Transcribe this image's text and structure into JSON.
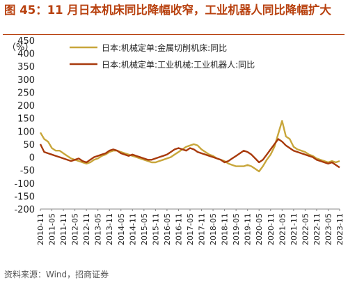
{
  "header": {
    "title": "图 45：11 月日本机床同比降幅收窄，工业机器人同比降幅扩大"
  },
  "footer": {
    "source": "资料来源：Wind，招商证券"
  },
  "chart_data": {
    "type": "line",
    "ylabel": "（%）",
    "ylim": [
      -200,
      450
    ],
    "yticks": [
      450,
      400,
      350,
      300,
      250,
      200,
      150,
      100,
      50,
      0,
      -50,
      -100,
      -150,
      -200
    ],
    "grid": false,
    "legend_position": "top-right",
    "x_tick_labels": [
      "2010-11",
      "2011-05",
      "2011-11",
      "2012-05",
      "2012-11",
      "2013-05",
      "2013-11",
      "2014-05",
      "2014-11",
      "2015-05",
      "2015-11",
      "2016-05",
      "2016-11",
      "2017-05",
      "2017-11",
      "2018-05",
      "2018-11",
      "2019-05",
      "2019-11",
      "2020-05",
      "2020-11",
      "2021-05",
      "2021-11",
      "2022-05",
      "2022-11",
      "2023-05",
      "2023-11"
    ],
    "series": [
      {
        "name": "日本:机械定单:金属切削机床:同比",
        "color": "#c8a63b",
        "points": [
          [
            "2010-11",
            95
          ],
          [
            "2011-01",
            70
          ],
          [
            "2011-03",
            60
          ],
          [
            "2011-05",
            35
          ],
          [
            "2011-07",
            25
          ],
          [
            "2011-09",
            25
          ],
          [
            "2011-11",
            15
          ],
          [
            "2012-01",
            5
          ],
          [
            "2012-03",
            -5
          ],
          [
            "2012-05",
            -10
          ],
          [
            "2012-07",
            -15
          ],
          [
            "2012-09",
            -20
          ],
          [
            "2012-11",
            -25
          ],
          [
            "2013-01",
            -20
          ],
          [
            "2013-03",
            -10
          ],
          [
            "2013-05",
            -5
          ],
          [
            "2013-07",
            5
          ],
          [
            "2013-09",
            10
          ],
          [
            "2013-11",
            20
          ],
          [
            "2014-01",
            25
          ],
          [
            "2014-03",
            25
          ],
          [
            "2014-05",
            20
          ],
          [
            "2014-07",
            15
          ],
          [
            "2014-09",
            10
          ],
          [
            "2014-11",
            5
          ],
          [
            "2015-01",
            0
          ],
          [
            "2015-03",
            -5
          ],
          [
            "2015-05",
            -10
          ],
          [
            "2015-07",
            -15
          ],
          [
            "2015-09",
            -20
          ],
          [
            "2015-11",
            -20
          ],
          [
            "2016-01",
            -15
          ],
          [
            "2016-03",
            -10
          ],
          [
            "2016-05",
            -5
          ],
          [
            "2016-07",
            0
          ],
          [
            "2016-09",
            10
          ],
          [
            "2016-11",
            20
          ],
          [
            "2017-01",
            30
          ],
          [
            "2017-03",
            40
          ],
          [
            "2017-05",
            45
          ],
          [
            "2017-07",
            50
          ],
          [
            "2017-09",
            45
          ],
          [
            "2017-11",
            30
          ],
          [
            "2018-01",
            20
          ],
          [
            "2018-03",
            10
          ],
          [
            "2018-05",
            5
          ],
          [
            "2018-07",
            -5
          ],
          [
            "2018-09",
            -10
          ],
          [
            "2018-11",
            -15
          ],
          [
            "2019-01",
            -25
          ],
          [
            "2019-03",
            -30
          ],
          [
            "2019-05",
            -35
          ],
          [
            "2019-07",
            -35
          ],
          [
            "2019-09",
            -35
          ],
          [
            "2019-11",
            -30
          ],
          [
            "2020-01",
            -35
          ],
          [
            "2020-03",
            -45
          ],
          [
            "2020-05",
            -55
          ],
          [
            "2020-07",
            -35
          ],
          [
            "2020-09",
            -10
          ],
          [
            "2020-11",
            10
          ],
          [
            "2021-01",
            40
          ],
          [
            "2021-03",
            90
          ],
          [
            "2021-05",
            140
          ],
          [
            "2021-07",
            80
          ],
          [
            "2021-09",
            70
          ],
          [
            "2021-11",
            40
          ],
          [
            "2022-01",
            30
          ],
          [
            "2022-03",
            25
          ],
          [
            "2022-05",
            20
          ],
          [
            "2022-07",
            10
          ],
          [
            "2022-09",
            5
          ],
          [
            "2022-11",
            -5
          ],
          [
            "2023-01",
            -10
          ],
          [
            "2023-03",
            -15
          ],
          [
            "2023-05",
            -20
          ],
          [
            "2023-07",
            -15
          ],
          [
            "2023-09",
            -20
          ],
          [
            "2023-11",
            -15
          ]
        ]
      },
      {
        "name": "日本:机械定单:工业机械:工业机器人:同比",
        "color": "#a83a0c",
        "points": [
          [
            "2010-11",
            50
          ],
          [
            "2011-01",
            20
          ],
          [
            "2011-03",
            15
          ],
          [
            "2011-05",
            10
          ],
          [
            "2011-07",
            5
          ],
          [
            "2011-09",
            0
          ],
          [
            "2011-11",
            -5
          ],
          [
            "2012-01",
            -10
          ],
          [
            "2012-03",
            -15
          ],
          [
            "2012-05",
            -10
          ],
          [
            "2012-07",
            -5
          ],
          [
            "2012-09",
            -15
          ],
          [
            "2012-11",
            -20
          ],
          [
            "2013-01",
            -10
          ],
          [
            "2013-03",
            0
          ],
          [
            "2013-05",
            5
          ],
          [
            "2013-07",
            10
          ],
          [
            "2013-09",
            15
          ],
          [
            "2013-11",
            25
          ],
          [
            "2014-01",
            30
          ],
          [
            "2014-03",
            25
          ],
          [
            "2014-05",
            15
          ],
          [
            "2014-07",
            10
          ],
          [
            "2014-09",
            5
          ],
          [
            "2014-11",
            10
          ],
          [
            "2015-01",
            5
          ],
          [
            "2015-03",
            0
          ],
          [
            "2015-05",
            -5
          ],
          [
            "2015-07",
            -10
          ],
          [
            "2015-09",
            -10
          ],
          [
            "2015-11",
            -5
          ],
          [
            "2016-01",
            0
          ],
          [
            "2016-03",
            5
          ],
          [
            "2016-05",
            10
          ],
          [
            "2016-07",
            20
          ],
          [
            "2016-09",
            30
          ],
          [
            "2016-11",
            35
          ],
          [
            "2017-01",
            30
          ],
          [
            "2017-03",
            25
          ],
          [
            "2017-05",
            35
          ],
          [
            "2017-07",
            30
          ],
          [
            "2017-09",
            20
          ],
          [
            "2017-11",
            15
          ],
          [
            "2018-01",
            10
          ],
          [
            "2018-03",
            5
          ],
          [
            "2018-05",
            0
          ],
          [
            "2018-07",
            -5
          ],
          [
            "2018-09",
            -10
          ],
          [
            "2018-11",
            -20
          ],
          [
            "2019-01",
            -15
          ],
          [
            "2019-03",
            -5
          ],
          [
            "2019-05",
            5
          ],
          [
            "2019-07",
            15
          ],
          [
            "2019-09",
            25
          ],
          [
            "2019-11",
            20
          ],
          [
            "2020-01",
            10
          ],
          [
            "2020-03",
            -5
          ],
          [
            "2020-05",
            -20
          ],
          [
            "2020-07",
            -10
          ],
          [
            "2020-09",
            10
          ],
          [
            "2020-11",
            30
          ],
          [
            "2021-01",
            50
          ],
          [
            "2021-03",
            70
          ],
          [
            "2021-05",
            60
          ],
          [
            "2021-07",
            45
          ],
          [
            "2021-09",
            35
          ],
          [
            "2021-11",
            25
          ],
          [
            "2022-01",
            20
          ],
          [
            "2022-03",
            15
          ],
          [
            "2022-05",
            10
          ],
          [
            "2022-07",
            5
          ],
          [
            "2022-09",
            0
          ],
          [
            "2022-11",
            -10
          ],
          [
            "2023-01",
            -15
          ],
          [
            "2023-03",
            -20
          ],
          [
            "2023-05",
            -25
          ],
          [
            "2023-07",
            -20
          ],
          [
            "2023-09",
            -30
          ],
          [
            "2023-11",
            -40
          ]
        ]
      }
    ]
  }
}
